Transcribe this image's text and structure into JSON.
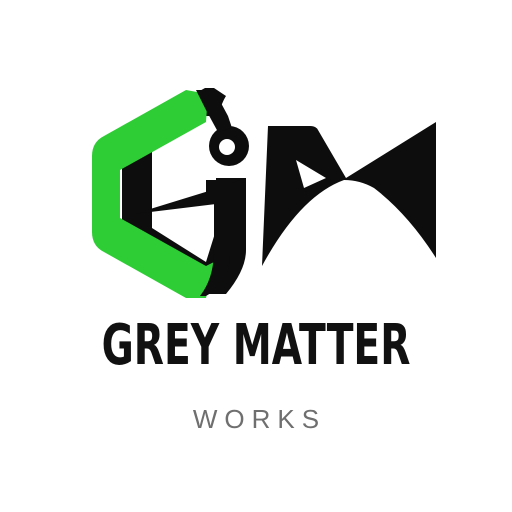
{
  "logo": {
    "monogram": "GM",
    "icon": "gm-monogram-logo",
    "colors": {
      "accent": "#2ecc35",
      "ink": "#0d0d0d",
      "background": "#ffffff",
      "tagline": "#6f6f6f"
    }
  },
  "brand": {
    "name": "GREY MATTER",
    "tagline": "WORKS"
  }
}
